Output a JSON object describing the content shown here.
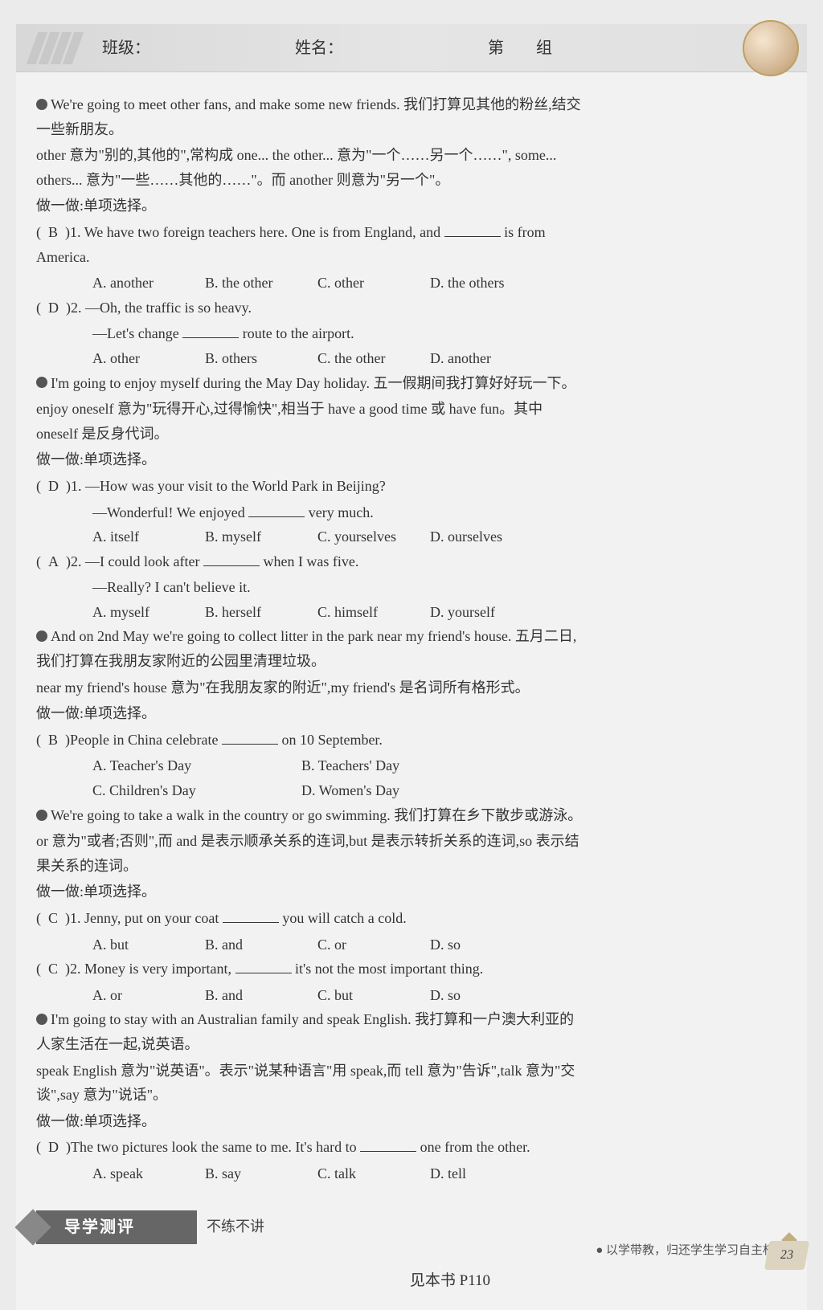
{
  "header": {
    "class_label": "班级：",
    "name_label": "姓名：",
    "group_prefix": "第",
    "group_suffix": "组"
  },
  "sections": [
    {
      "lead": "We're going to meet other fans, and make some new friends. 我们打算见其他的粉丝,结交一些新朋友。",
      "explain": "other 意为\"别的,其他的\",常构成 one... the other... 意为\"一个……另一个……\", some... others... 意为\"一些……其他的……\"。而 another 则意为\"另一个\"。",
      "practice_label": "做一做:单项选择。",
      "questions": [
        {
          "ans": "B",
          "num": "1.",
          "stem": "We have two foreign teachers here. One is from England, and ",
          "stem_tail": " is from America.",
          "opts": [
            "A. another",
            "B. the other",
            "C. other",
            "D. the others"
          ]
        },
        {
          "ans": "D",
          "num": "2.",
          "stem": "—Oh, the traffic is so heavy.",
          "line2": "—Let's change ",
          "line2_tail": " route to the airport.",
          "opts": [
            "A. other",
            "B. others",
            "C. the other",
            "D. another"
          ]
        }
      ]
    },
    {
      "lead": "I'm going to enjoy myself during the May Day holiday. 五一假期间我打算好好玩一下。",
      "explain": "enjoy oneself 意为\"玩得开心,过得愉快\",相当于 have a good time 或 have fun。其中 oneself 是反身代词。",
      "practice_label": "做一做:单项选择。",
      "questions": [
        {
          "ans": "D",
          "num": "1.",
          "stem": "—How was your visit to the World Park in Beijing?",
          "line2": "—Wonderful! We enjoyed ",
          "line2_tail": " very much.",
          "opts": [
            "A. itself",
            "B. myself",
            "C. yourselves",
            "D. ourselves"
          ]
        },
        {
          "ans": "A",
          "num": "2.",
          "stem": "—I could look after ",
          "stem_tail": " when I was five.",
          "line2": "—Really? I can't believe it.",
          "opts": [
            "A. myself",
            "B. herself",
            "C. himself",
            "D. yourself"
          ]
        }
      ]
    },
    {
      "lead": "And on 2nd May we're going to collect litter in the park near my friend's house. 五月二日,我们打算在我朋友家附近的公园里清理垃圾。",
      "explain": "near my friend's house 意为\"在我朋友家的附近\",my friend's 是名词所有格形式。",
      "practice_label": "做一做:单项选择。",
      "questions": [
        {
          "ans": "B",
          "num": "",
          "stem": "People in China celebrate ",
          "stem_tail": " on 10 September.",
          "opts2col": [
            [
              "A. Teacher's Day",
              "B. Teachers' Day"
            ],
            [
              "C. Children's Day",
              "D. Women's Day"
            ]
          ]
        }
      ]
    },
    {
      "lead": "We're going to take a walk in the country or go swimming. 我们打算在乡下散步或游泳。",
      "explain": "or 意为\"或者;否则\",而 and 是表示顺承关系的连词,but 是表示转折关系的连词,so 表示结果关系的连词。",
      "practice_label": "做一做:单项选择。",
      "questions": [
        {
          "ans": "C",
          "num": "1.",
          "stem": "Jenny, put on your coat ",
          "stem_tail": " you will catch a cold.",
          "opts": [
            "A. but",
            "B. and",
            "C. or",
            "D. so"
          ]
        },
        {
          "ans": "C",
          "num": "2.",
          "stem": "Money is very important, ",
          "stem_tail": " it's not the most important thing.",
          "opts": [
            "A. or",
            "B. and",
            "C. but",
            "D. so"
          ]
        }
      ]
    },
    {
      "lead": "I'm going to stay with an Australian family and speak English. 我打算和一户澳大利亚的人家生活在一起,说英语。",
      "explain": "speak English 意为\"说英语\"。表示\"说某种语言\"用 speak,而 tell 意为\"告诉\",talk 意为\"交谈\",say 意为\"说话\"。",
      "practice_label": "做一做:单项选择。",
      "questions": [
        {
          "ans": "D",
          "num": "",
          "stem": "The two pictures look the same to me. It's hard to ",
          "stem_tail": " one from the other.",
          "opts": [
            "A. speak",
            "B. say",
            "C. talk",
            "D. tell"
          ]
        }
      ]
    }
  ],
  "footer": {
    "badge": "导学测评",
    "badge_tail": "不练不讲",
    "page_ref": "见本书 P110",
    "bottom_line": "● 以学带教，归还学生学习自主权",
    "page_num": "23"
  }
}
